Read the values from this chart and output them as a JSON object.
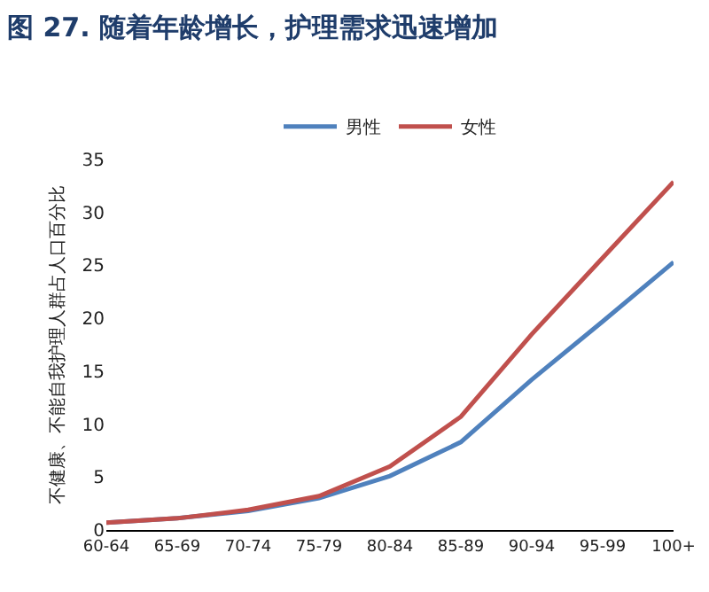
{
  "chart_data": {
    "type": "line",
    "title": "图 27. 随着年龄增长，护理需求迅速增加",
    "ylabel": "不健康、不能自我护理人群占人口百分比",
    "categories": [
      "60-64",
      "65-69",
      "70-74",
      "75-79",
      "80-84",
      "85-89",
      "90-94",
      "95-99",
      "100+"
    ],
    "series": [
      {
        "name": "男性",
        "color": "#4f81bd",
        "values": [
          0.7,
          1.1,
          1.8,
          3.0,
          5.1,
          8.3,
          14.2,
          19.7,
          25.3
        ]
      },
      {
        "name": "女性",
        "color": "#c0504d",
        "values": [
          0.7,
          1.1,
          1.9,
          3.2,
          6.0,
          10.7,
          18.5,
          25.7,
          32.9
        ]
      }
    ],
    "ylim": [
      0,
      35
    ],
    "yticks": [
      0,
      5,
      10,
      15,
      20,
      25,
      30,
      35
    ],
    "grid": false,
    "legend": "top",
    "marker": "none",
    "line_style": "solid"
  }
}
